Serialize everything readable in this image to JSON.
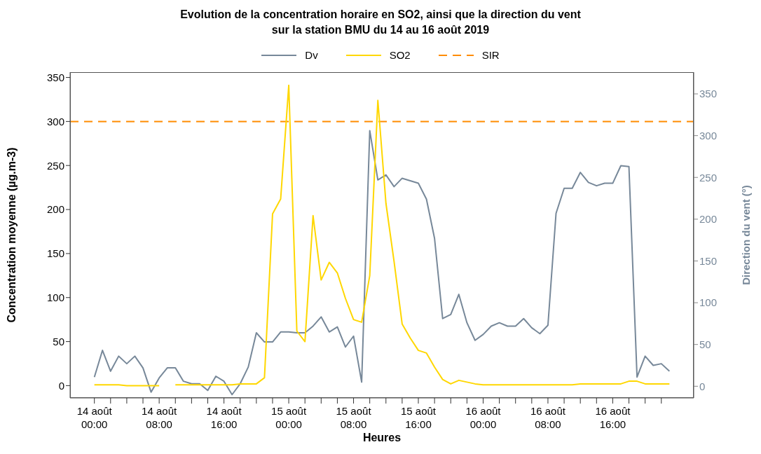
{
  "chart_data": {
    "type": "line",
    "title": "Evolution de la concentration horaire en SO2, ainsi que la direction du vent\nsur la station BMU du 14 au 16 août 2019",
    "xlabel": "Heures",
    "ylabel": "Concentration moyenne (µg.m-3)",
    "y2label": "Direction du vent (°)",
    "legend": "top",
    "grid": false,
    "marker": "none",
    "line_style": "solid",
    "x": [
      "2019-08-14T00:00",
      "2019-08-14T01:00",
      "2019-08-14T02:00",
      "2019-08-14T03:00",
      "2019-08-14T04:00",
      "2019-08-14T05:00",
      "2019-08-14T06:00",
      "2019-08-14T07:00",
      "2019-08-14T08:00",
      "2019-08-14T09:00",
      "2019-08-14T10:00",
      "2019-08-14T11:00",
      "2019-08-14T12:00",
      "2019-08-14T13:00",
      "2019-08-14T14:00",
      "2019-08-14T15:00",
      "2019-08-14T16:00",
      "2019-08-14T17:00",
      "2019-08-14T18:00",
      "2019-08-14T19:00",
      "2019-08-14T20:00",
      "2019-08-14T21:00",
      "2019-08-14T22:00",
      "2019-08-14T23:00",
      "2019-08-15T00:00",
      "2019-08-15T01:00",
      "2019-08-15T02:00",
      "2019-08-15T03:00",
      "2019-08-15T04:00",
      "2019-08-15T05:00",
      "2019-08-15T06:00",
      "2019-08-15T07:00",
      "2019-08-15T08:00",
      "2019-08-15T09:00",
      "2019-08-15T10:00",
      "2019-08-15T11:00",
      "2019-08-15T12:00",
      "2019-08-15T13:00",
      "2019-08-15T14:00",
      "2019-08-15T15:00",
      "2019-08-15T16:00",
      "2019-08-15T17:00",
      "2019-08-15T18:00",
      "2019-08-15T19:00",
      "2019-08-15T20:00",
      "2019-08-15T21:00",
      "2019-08-15T22:00",
      "2019-08-15T23:00",
      "2019-08-16T00:00",
      "2019-08-16T01:00",
      "2019-08-16T02:00",
      "2019-08-16T03:00",
      "2019-08-16T04:00",
      "2019-08-16T05:00",
      "2019-08-16T06:00",
      "2019-08-16T07:00",
      "2019-08-16T08:00",
      "2019-08-16T09:00",
      "2019-08-16T10:00",
      "2019-08-16T11:00",
      "2019-08-16T12:00",
      "2019-08-16T13:00",
      "2019-08-16T14:00",
      "2019-08-16T15:00",
      "2019-08-16T16:00",
      "2019-08-16T17:00",
      "2019-08-16T18:00",
      "2019-08-16T19:00",
      "2019-08-16T20:00",
      "2019-08-16T21:00",
      "2019-08-16T22:00",
      "2019-08-16T23:00"
    ],
    "series": [
      {
        "name": "Dv",
        "color": "#778899",
        "axis": "y2",
        "values": [
          11,
          43,
          18,
          36,
          27,
          36,
          22,
          -7,
          10,
          22,
          22,
          6,
          3,
          3,
          -5,
          12,
          6,
          -10,
          3,
          23,
          64,
          53,
          53,
          65,
          65,
          64,
          64,
          72,
          83,
          65,
          71,
          47,
          60,
          5,
          306,
          247,
          253,
          239,
          249,
          246,
          243,
          224,
          177,
          81,
          86,
          110,
          76,
          55,
          62,
          72,
          76,
          72,
          72,
          81,
          70,
          63,
          73,
          207,
          237,
          237,
          256,
          244,
          240,
          243,
          243,
          264,
          263,
          11,
          36,
          25,
          27,
          18
        ]
      },
      {
        "name": "SO2",
        "color": "#ffd700",
        "values": [
          1,
          1,
          1,
          1,
          0,
          0,
          0,
          0,
          0,
          null,
          1,
          1,
          1,
          1,
          1,
          1,
          1,
          1,
          2,
          2,
          2,
          9,
          195,
          212,
          341,
          62,
          50,
          193,
          120,
          140,
          128,
          99,
          75,
          72,
          125,
          324,
          207,
          141,
          70,
          54,
          40,
          37,
          21,
          7,
          2,
          6,
          4,
          2,
          1,
          1,
          1,
          1,
          1,
          1,
          1,
          1,
          1,
          1,
          1,
          1,
          2,
          2,
          2,
          2,
          2,
          2,
          5,
          5,
          2,
          2,
          2,
          2
        ]
      }
    ],
    "ref_lines": [
      {
        "axis": "y",
        "value": 300,
        "label": "SIR",
        "color": "#ff8c00",
        "line_style": "dashed"
      }
    ],
    "xlim": [
      "2019-08-13T21:00",
      "2019-08-17T02:00"
    ],
    "xticks": [
      {
        "value": "2019-08-14T00:00",
        "label": "14 août\n00:00"
      },
      {
        "value": "2019-08-14T02:00",
        "label": null
      },
      {
        "value": "2019-08-14T04:00",
        "label": null
      },
      {
        "value": "2019-08-14T06:00",
        "label": null
      },
      {
        "value": "2019-08-14T08:00",
        "label": "14 août\n08:00"
      },
      {
        "value": "2019-08-14T10:00",
        "label": null
      },
      {
        "value": "2019-08-14T12:00",
        "label": null
      },
      {
        "value": "2019-08-14T14:00",
        "label": null
      },
      {
        "value": "2019-08-14T16:00",
        "label": "14 août\n16:00"
      },
      {
        "value": "2019-08-14T18:00",
        "label": null
      },
      {
        "value": "2019-08-14T20:00",
        "label": null
      },
      {
        "value": "2019-08-14T22:00",
        "label": null
      },
      {
        "value": "2019-08-15T00:00",
        "label": "15 août\n00:00"
      },
      {
        "value": "2019-08-15T02:00",
        "label": null
      },
      {
        "value": "2019-08-15T04:00",
        "label": null
      },
      {
        "value": "2019-08-15T06:00",
        "label": null
      },
      {
        "value": "2019-08-15T08:00",
        "label": "15 août\n08:00"
      },
      {
        "value": "2019-08-15T10:00",
        "label": null
      },
      {
        "value": "2019-08-15T12:00",
        "label": null
      },
      {
        "value": "2019-08-15T14:00",
        "label": null
      },
      {
        "value": "2019-08-15T16:00",
        "label": "15 août\n16:00"
      },
      {
        "value": "2019-08-15T18:00",
        "label": null
      },
      {
        "value": "2019-08-15T20:00",
        "label": null
      },
      {
        "value": "2019-08-15T22:00",
        "label": null
      },
      {
        "value": "2019-08-16T00:00",
        "label": "16 août\n00:00"
      },
      {
        "value": "2019-08-16T02:00",
        "label": null
      },
      {
        "value": "2019-08-16T04:00",
        "label": null
      },
      {
        "value": "2019-08-16T06:00",
        "label": null
      },
      {
        "value": "2019-08-16T08:00",
        "label": "16 août\n08:00"
      },
      {
        "value": "2019-08-16T10:00",
        "label": null
      },
      {
        "value": "2019-08-16T12:00",
        "label": null
      },
      {
        "value": "2019-08-16T14:00",
        "label": null
      },
      {
        "value": "2019-08-16T16:00",
        "label": "16 août\n16:00"
      },
      {
        "value": "2019-08-16T18:00",
        "label": null
      },
      {
        "value": "2019-08-16T20:00",
        "label": null
      },
      {
        "value": "2019-08-16T22:00",
        "label": null
      }
    ],
    "ylim": [
      -14,
      356
    ],
    "yticks": [
      0,
      50,
      100,
      150,
      200,
      250,
      300,
      350
    ],
    "y2lim": [
      -14,
      376
    ],
    "y2ticks": [
      0,
      50,
      100,
      150,
      200,
      250,
      300,
      350
    ]
  }
}
